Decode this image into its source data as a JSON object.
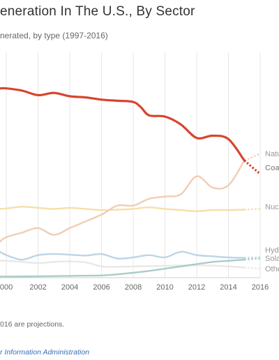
{
  "header": {
    "title": "eneration In The U.S., By Sector",
    "subtitle": "nerated, by type (1997-2016)"
  },
  "footer": {
    "note": "016 are projections.",
    "source": "r Information Administration"
  },
  "chart_data": {
    "type": "line",
    "x_ticks": [
      "000",
      "2002",
      "2004",
      "2006",
      "2008",
      "2010",
      "2012",
      "2014",
      "2016"
    ],
    "x_tick_values": [
      2000,
      2002,
      2004,
      2006,
      2008,
      2010,
      2012,
      2014,
      2016
    ],
    "x_range": [
      1999.6,
      2016
    ],
    "y_range": [
      0,
      100
    ],
    "grid": true,
    "projection_start": 2015,
    "series": [
      {
        "name": "Coa",
        "color": "#d6452d",
        "bold": true,
        "x": [
          1999.6,
          2000,
          2001,
          2002,
          2003,
          2004,
          2005,
          2006,
          2007,
          2008,
          2008.5,
          2009,
          2010,
          2011,
          2012,
          2013,
          2014,
          2015,
          2016
        ],
        "values": [
          84,
          84,
          83,
          81,
          82,
          80.5,
          80,
          79,
          78.5,
          78,
          75.5,
          72,
          71.5,
          68,
          62,
          63,
          61.5,
          52,
          46
        ]
      },
      {
        "name": "Natu",
        "color": "#f1cdb2",
        "bold": false,
        "x": [
          1999.6,
          2000,
          2001,
          2002,
          2003,
          2004,
          2005,
          2006,
          2007,
          2008,
          2009,
          2010,
          2011,
          2012,
          2013,
          2014,
          2015,
          2016
        ],
        "values": [
          16,
          18,
          20,
          22,
          19,
          22,
          25,
          28,
          32,
          32,
          35,
          36,
          37,
          45,
          40,
          41,
          52,
          55
        ]
      },
      {
        "name": "Nuc",
        "color": "#f6dfa8",
        "bold": false,
        "x": [
          1999.6,
          2000,
          2001,
          2002,
          2003,
          2004,
          2005,
          2006,
          2007,
          2008,
          2009,
          2010,
          2011,
          2012,
          2013,
          2014,
          2015,
          2016
        ],
        "values": [
          30.5,
          30.7,
          31.5,
          31,
          30.5,
          31,
          30.5,
          30,
          30.2,
          30.5,
          31.2,
          30.5,
          30,
          29.5,
          30,
          30,
          30.2,
          30.5
        ]
      },
      {
        "name": "Hyd",
        "color": "#bcd4e6",
        "bold": false,
        "x": [
          1999.6,
          2000,
          2001,
          2002,
          2003,
          2004,
          2005,
          2006,
          2007,
          2008,
          2009,
          2010,
          2011,
          2012,
          2013,
          2014,
          2015,
          2016
        ],
        "values": [
          11.5,
          10,
          8,
          10,
          10.5,
          10.2,
          9.8,
          10.5,
          8.5,
          9,
          10,
          9,
          11.5,
          10,
          9.5,
          9,
          8.8,
          9
        ]
      },
      {
        "name": "Sola",
        "color": "#a9ccc8",
        "bold": false,
        "x": [
          1999.6,
          2000,
          2002,
          2004,
          2006,
          2007,
          2008,
          2009,
          2010,
          2011,
          2012,
          2013,
          2014,
          2015,
          2016
        ],
        "values": [
          0.5,
          0.5,
          0.6,
          0.8,
          1,
          1.5,
          2.2,
          3,
          4,
          5,
          6,
          7,
          7.5,
          8,
          8.5
        ]
      },
      {
        "name": "Othe",
        "color": "#e8e8e8",
        "bold": false,
        "x": [
          1999.6,
          2000,
          2001,
          2002,
          2003,
          2004,
          2005,
          2006,
          2007,
          2008,
          2010,
          2012,
          2014,
          2015,
          2016
        ],
        "values": [
          7.5,
          7.5,
          7,
          6.5,
          7,
          7.2,
          6.8,
          5,
          4.8,
          5,
          5.3,
          5.5,
          5,
          4.5,
          4
        ]
      }
    ],
    "labels": [
      {
        "series": "Natu",
        "text": "Natu"
      },
      {
        "series": "Coa",
        "text": "Coa"
      },
      {
        "series": "Nuc",
        "text": "Nuc"
      },
      {
        "series": "Hyd",
        "text": "Hyd"
      },
      {
        "series": "Sola",
        "text": "Sola"
      },
      {
        "series": "Othe",
        "text": "Othe"
      }
    ]
  }
}
